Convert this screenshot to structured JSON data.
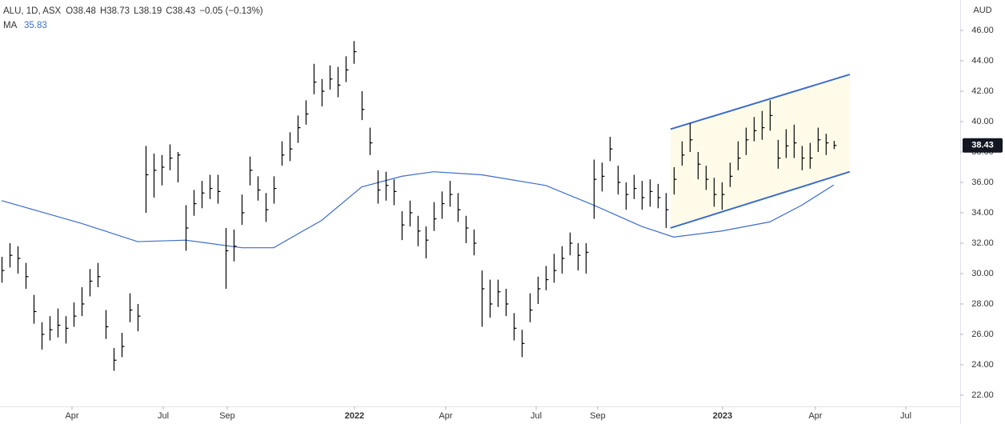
{
  "chart_data": {
    "type": "ohlc",
    "symbol": "ALU, 1D, ASX",
    "quote": [
      "O38.48",
      "H38.73",
      "L38.19",
      "C38.43",
      "−0.05 (−0.13%)"
    ],
    "currency": "AUD",
    "xlim": [
      -0.2,
      119.8
    ],
    "xticks": [
      {
        "value": 8.8,
        "label": "Apr"
      },
      {
        "value": 20.2,
        "label": "Jul"
      },
      {
        "value": 28.2,
        "label": "Sep"
      },
      {
        "value": 44.1,
        "label": "2022"
      },
      {
        "value": 55.5,
        "label": "Apr"
      },
      {
        "value": 66.8,
        "label": "Jul"
      },
      {
        "value": 74.5,
        "label": "Sep"
      },
      {
        "value": 90.1,
        "label": "2023"
      },
      {
        "value": 101.7,
        "label": "Apr"
      },
      {
        "value": 113,
        "label": "Jul"
      }
    ],
    "ylim": [
      21.26,
      48
    ],
    "yticks": [
      {
        "value": 22,
        "label": "22.00"
      },
      {
        "value": 24,
        "label": "24.00"
      },
      {
        "value": 26,
        "label": "26.00"
      },
      {
        "value": 28,
        "label": "28.00"
      },
      {
        "value": 30,
        "label": "30.00"
      },
      {
        "value": 32,
        "label": "32.00"
      },
      {
        "value": 34,
        "label": "34.00"
      },
      {
        "value": 36,
        "label": "36.00"
      },
      {
        "value": 38,
        "label": "38.00"
      },
      {
        "value": 40,
        "label": "40.00"
      },
      {
        "value": 42,
        "label": "42.00"
      },
      {
        "value": 44,
        "label": "44.00"
      },
      {
        "value": 46,
        "label": "46.00"
      }
    ],
    "bars": {
      "color": "#000000",
      "high": [
        31.1,
        32.0,
        31.8,
        30.7,
        28.6,
        26.8,
        27.2,
        27.7,
        27.2,
        28.1,
        29.1,
        30.3,
        30.7,
        27.6,
        25.1,
        26.1,
        28.7,
        28.0,
        38.4,
        37.9,
        37.8,
        38.5,
        38.0,
        34.5,
        35.5,
        36.1,
        36.5,
        36.5,
        33.0,
        32.9,
        35.2,
        37.7,
        36.4,
        35.3,
        36.4,
        38.7,
        39.3,
        40.4,
        41.4,
        43.8,
        42.8,
        43.7,
        43.6,
        44.3,
        45.3,
        42.0,
        39.6,
        36.8,
        36.7,
        36.2,
        34.1,
        34.8,
        33.8,
        33.1,
        34.7,
        35.4,
        36.1,
        35.3,
        33.8,
        32.9,
        30.2,
        29.6,
        29.6,
        29.0,
        27.4,
        26.3,
        28.7,
        29.8,
        30.5,
        31.3,
        31.8,
        32.7,
        32.0,
        32.0,
        37.5,
        37.3,
        39.0,
        37.1,
        36.0,
        36.5,
        36.1,
        36.2,
        35.9,
        35.3,
        37.0,
        38.7,
        39.9,
        38.0,
        37.1,
        36.3,
        36.0,
        37.3,
        38.7,
        39.6,
        40.3,
        40.7,
        41.4,
        38.8,
        39.5,
        39.8,
        38.4,
        38.6,
        39.6,
        39.2,
        38.73
      ],
      "low": [
        29.4,
        30.4,
        30.0,
        29.0,
        26.7,
        25.0,
        25.6,
        25.8,
        25.4,
        26.5,
        27.2,
        28.5,
        29.1,
        25.7,
        23.6,
        24.5,
        26.8,
        26.2,
        34.0,
        35.0,
        35.8,
        36.8,
        36.0,
        31.5,
        33.8,
        34.3,
        34.9,
        34.6,
        29.0,
        30.8,
        33.2,
        35.8,
        34.8,
        33.4,
        34.6,
        37.1,
        37.4,
        38.6,
        39.8,
        41.8,
        41.0,
        42.1,
        41.6,
        42.6,
        43.8,
        40.1,
        37.8,
        34.6,
        34.8,
        34.5,
        32.2,
        33.1,
        31.8,
        31.0,
        32.8,
        33.6,
        34.4,
        33.4,
        32.0,
        31.2,
        26.5,
        27.1,
        27.8,
        27.2,
        25.6,
        24.5,
        26.8,
        28.0,
        28.9,
        29.4,
        30.0,
        31.2,
        30.2,
        30.0,
        33.6,
        35.4,
        37.4,
        35.2,
        34.2,
        34.9,
        34.2,
        34.4,
        34.3,
        33.0,
        35.2,
        37.1,
        38.0,
        36.2,
        35.5,
        34.4,
        34.2,
        35.7,
        36.8,
        37.8,
        38.7,
        38.8,
        39.4,
        36.9,
        37.6,
        37.6,
        36.8,
        36.9,
        38.0,
        37.8,
        38.19
      ],
      "close": [
        30.2,
        31.2,
        31.0,
        29.8,
        27.5,
        26.0,
        26.3,
        26.6,
        26.4,
        27.2,
        28.0,
        29.5,
        29.8,
        26.5,
        24.3,
        25.2,
        27.6,
        27.2,
        36.5,
        36.8,
        37.0,
        37.6,
        37.8,
        33.0,
        34.6,
        35.3,
        35.6,
        35.4,
        31.5,
        31.8,
        34.0,
        36.8,
        35.5,
        34.2,
        35.6,
        37.8,
        38.2,
        39.6,
        40.5,
        42.6,
        42.0,
        42.8,
        42.4,
        43.4,
        44.6,
        40.8,
        38.6,
        35.5,
        35.8,
        35.4,
        33.2,
        34.0,
        32.8,
        32.2,
        33.6,
        34.6,
        35.2,
        34.2,
        33.0,
        32.0,
        29.0,
        28.0,
        28.8,
        28.0,
        26.4,
        25.4,
        27.6,
        29.0,
        29.6,
        30.2,
        31.0,
        32.0,
        31.2,
        31.4,
        36.2,
        36.4,
        38.2,
        36.0,
        35.2,
        35.6,
        35.0,
        35.4,
        35.0,
        34.2,
        36.2,
        37.8,
        38.8,
        37.2,
        36.2,
        35.2,
        35.2,
        36.4,
        37.6,
        38.8,
        39.4,
        39.6,
        40.4,
        37.6,
        38.4,
        38.6,
        37.6,
        37.6,
        38.8,
        38.6,
        38.43
      ]
    },
    "ma": {
      "name": "MA",
      "color": "#3d6dc8",
      "x": [
        0,
        10,
        17,
        23,
        30,
        34,
        40,
        45,
        50,
        54,
        60,
        68,
        74,
        80,
        84,
        90,
        96,
        100,
        104
      ],
      "values": [
        34.8,
        33.3,
        32.1,
        32.2,
        31.7,
        31.7,
        33.5,
        35.7,
        36.4,
        36.7,
        36.5,
        35.8,
        34.5,
        33.1,
        32.4,
        32.8,
        33.4,
        34.5,
        35.83
      ]
    },
    "channel": {
      "color": "#3d6dc8",
      "fill": "#fffbe8",
      "upper": {
        "x": [
          83.6,
          106
        ],
        "values": [
          39.5,
          43.1
        ]
      },
      "lower": {
        "x": [
          83.6,
          106
        ],
        "values": [
          33.0,
          36.7
        ]
      }
    }
  }
}
